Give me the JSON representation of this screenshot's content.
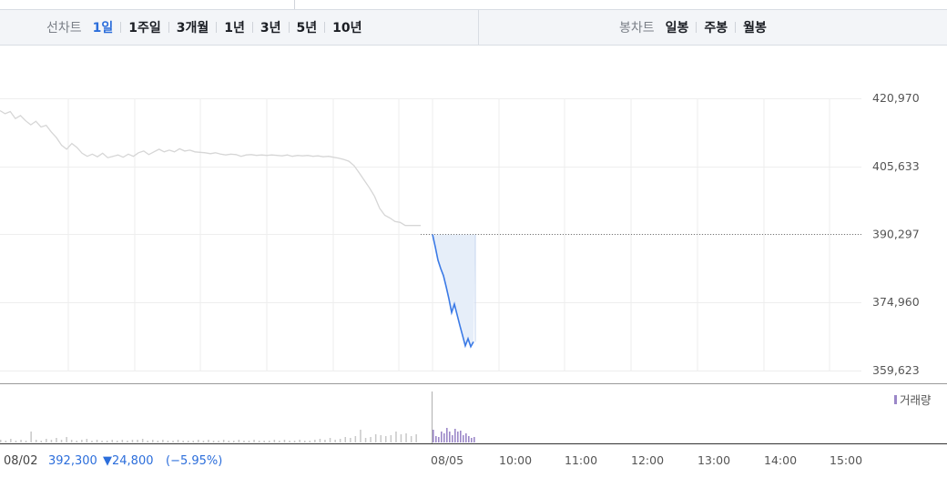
{
  "tabs": {
    "line_chart_label": "선차트",
    "line_periods": [
      {
        "label": "1일",
        "active": true
      },
      {
        "label": "1주일",
        "active": false
      },
      {
        "label": "3개월",
        "active": false
      },
      {
        "label": "1년",
        "active": false
      },
      {
        "label": "3년",
        "active": false
      },
      {
        "label": "5년",
        "active": false
      },
      {
        "label": "10년",
        "active": false
      }
    ],
    "candle_chart_label": "봉차트",
    "candle_periods": [
      {
        "label": "일봉"
      },
      {
        "label": "주봉"
      },
      {
        "label": "월봉"
      }
    ]
  },
  "summary": {
    "date": "08/02",
    "price": "392,300",
    "change": "▼24,800",
    "change_pct": "(−5.95%)"
  },
  "colors": {
    "prev_day_line": "#d6d6d6",
    "today_line": "#3b7ae6",
    "today_fill": "#e6eef9",
    "volume_prev": "#c8c8c8",
    "volume_today": "#9b87c8",
    "down_color": "#2c6edb"
  },
  "chart_data": {
    "type": "line",
    "ylim": [
      359623,
      420970
    ],
    "yticks": [
      "420,970",
      "405,633",
      "390,297",
      "374,960",
      "359,623"
    ],
    "yticks_values": [
      420970,
      405633,
      390297,
      374960,
      359623
    ],
    "reference_price": 390297,
    "xticks": [
      "08/05",
      "10:00",
      "11:00",
      "12:00",
      "13:00",
      "14:00",
      "15:00"
    ],
    "volume_legend": "거래량",
    "series": [
      {
        "role": "previous day 08/02",
        "values": [
          418200,
          417500,
          418000,
          416400,
          417100,
          415900,
          415000,
          415800,
          414500,
          414900,
          413400,
          412100,
          410400,
          409500,
          410800,
          409900,
          408600,
          407900,
          408400,
          407800,
          408600,
          407600,
          407900,
          408200,
          407700,
          408400,
          407900,
          408700,
          409100,
          408300,
          408900,
          409500,
          408900,
          409300,
          408900,
          409600,
          409100,
          409300,
          408900,
          408800,
          408700,
          408500,
          408700,
          408400,
          408200,
          408400,
          408300,
          407900,
          408200,
          408300,
          408100,
          408200,
          408100,
          408200,
          408100,
          408000,
          408200,
          407900,
          408100,
          408000,
          408100,
          407900,
          408000,
          407800,
          407900,
          407700,
          407500,
          407200,
          406800,
          405800,
          404200,
          402500,
          400800,
          398900,
          396200,
          394600,
          394000,
          393200,
          393000,
          392300,
          392300,
          392300,
          392300
        ]
      },
      {
        "role": "today 08/05",
        "values": [
          390297,
          387500,
          384500,
          382600,
          381000,
          378500,
          375800,
          372700,
          374600,
          372200,
          369800,
          367500,
          365200,
          366800,
          365000,
          366100
        ]
      }
    ],
    "volume": {
      "previous_day": [
        3,
        2,
        4,
        2,
        3,
        2,
        12,
        3,
        2,
        4,
        3,
        5,
        3,
        6,
        3,
        2,
        3,
        4,
        2,
        3,
        2,
        2,
        3,
        2,
        3,
        2,
        3,
        3,
        4,
        2,
        3,
        2,
        3,
        2,
        2,
        3,
        2,
        2,
        2,
        3,
        2,
        3,
        2,
        2,
        3,
        2,
        2,
        3,
        2,
        2,
        3,
        2,
        2,
        2,
        3,
        2,
        3,
        2,
        2,
        3,
        2,
        2,
        3,
        4,
        3,
        5,
        3,
        4,
        6,
        5,
        7,
        14,
        5,
        6,
        9,
        8,
        7,
        8,
        12,
        9,
        10,
        7,
        9
      ],
      "today": [
        14,
        7,
        6,
        12,
        10,
        16,
        12,
        8,
        15,
        12,
        13,
        8,
        10,
        7,
        5,
        6
      ]
    }
  }
}
